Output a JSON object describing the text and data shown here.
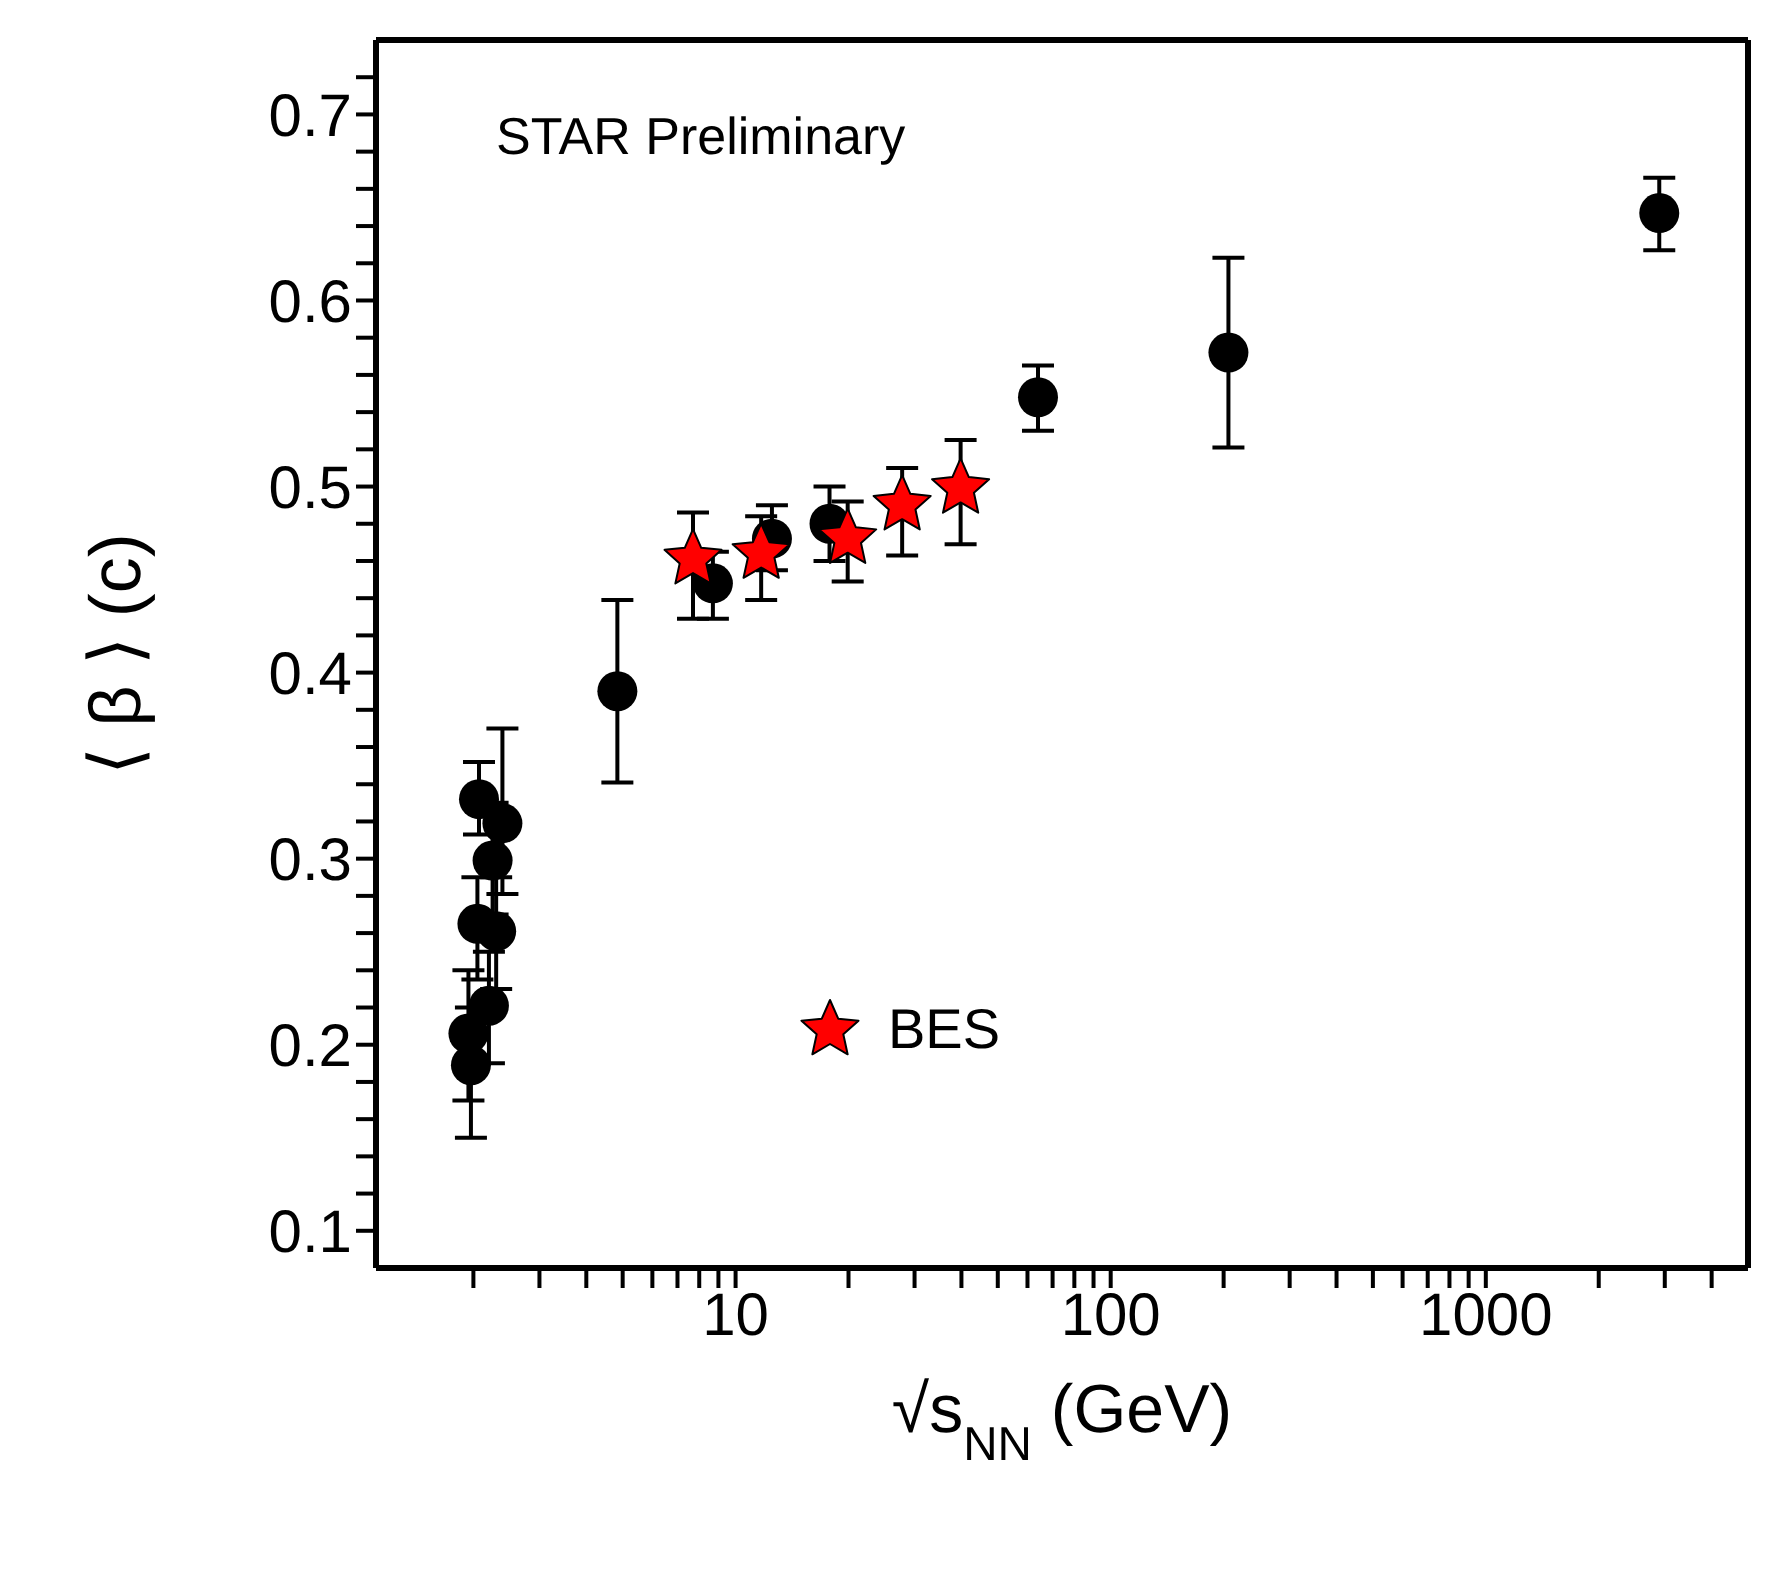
{
  "chart_data": {
    "type": "scatter",
    "xlabel": "√s$_{NN}$ (GeV)",
    "ylabel": "⟨ β ⟩ (c)",
    "annotations": [
      "STAR Preliminary"
    ],
    "log": "x",
    "xlim": [
      1.1,
      5000
    ],
    "xticks": [
      {
        "value": 2,
        "label": null
      },
      {
        "value": 3,
        "label": null
      },
      {
        "value": 4,
        "label": null
      },
      {
        "value": 5,
        "label": null
      },
      {
        "value": 6,
        "label": null
      },
      {
        "value": 7,
        "label": null
      },
      {
        "value": 8,
        "label": null
      },
      {
        "value": 9,
        "label": null
      },
      10,
      {
        "value": 20,
        "label": null
      },
      {
        "value": 30,
        "label": null
      },
      {
        "value": 40,
        "label": null
      },
      {
        "value": 50,
        "label": null
      },
      {
        "value": 60,
        "label": null
      },
      {
        "value": 70,
        "label": null
      },
      {
        "value": 80,
        "label": null
      },
      {
        "value": 90,
        "label": null
      },
      100,
      {
        "value": 200,
        "label": null
      },
      {
        "value": 300,
        "label": null
      },
      {
        "value": 400,
        "label": null
      },
      {
        "value": 500,
        "label": null
      },
      {
        "value": 600,
        "label": null
      },
      {
        "value": 700,
        "label": null
      },
      {
        "value": 800,
        "label": null
      },
      {
        "value": 900,
        "label": null
      },
      1000,
      {
        "value": 2000,
        "label": null
      },
      {
        "value": 3000,
        "label": null
      },
      {
        "value": 4000,
        "label": null
      }
    ],
    "ylim": [
      0.08,
      0.74
    ],
    "yticks": [
      0.1,
      {
        "value": 0.12,
        "label": null
      },
      {
        "value": 0.14,
        "label": null
      },
      {
        "value": 0.16,
        "label": null
      },
      {
        "value": 0.18,
        "label": null
      },
      0.2,
      {
        "value": 0.22,
        "label": null
      },
      {
        "value": 0.24,
        "label": null
      },
      {
        "value": 0.26,
        "label": null
      },
      {
        "value": 0.28,
        "label": null
      },
      0.3,
      {
        "value": 0.32,
        "label": null
      },
      {
        "value": 0.34,
        "label": null
      },
      {
        "value": 0.36,
        "label": null
      },
      {
        "value": 0.38,
        "label": null
      },
      0.4,
      {
        "value": 0.42,
        "label": null
      },
      {
        "value": 0.44,
        "label": null
      },
      {
        "value": 0.46,
        "label": null
      },
      {
        "value": 0.48,
        "label": null
      },
      0.5,
      {
        "value": 0.52,
        "label": null
      },
      {
        "value": 0.54,
        "label": null
      },
      {
        "value": 0.56,
        "label": null
      },
      {
        "value": 0.58,
        "label": null
      },
      0.6,
      {
        "value": 0.62,
        "label": null
      },
      {
        "value": 0.64,
        "label": null
      },
      {
        "value": 0.66,
        "label": null
      },
      {
        "value": 0.68,
        "label": null
      },
      0.7,
      {
        "value": 0.72,
        "label": null
      }
    ],
    "legend": "bottom",
    "series": [
      {
        "color": "#000000",
        "marker": "circle",
        "x": [
          2.07,
          2.39,
          2.25,
          2.05,
          2.3,
          2.2,
          1.94,
          1.97,
          4.84,
          8.7,
          12.5,
          17.8,
          64,
          206,
          2900
        ],
        "values": [
          0.332,
          0.319,
          0.299,
          0.265,
          0.261,
          0.221,
          0.206,
          0.189,
          0.39,
          0.448,
          0.472,
          0.48,
          0.548,
          0.572,
          0.647
        ],
        "errors": [
          [
            0.313,
            0.352
          ],
          [
            0.281,
            0.37
          ],
          [
            0.27,
            0.33
          ],
          [
            0.235,
            0.29
          ],
          [
            0.23,
            0.29
          ],
          [
            0.19,
            0.25
          ],
          [
            0.17,
            0.24
          ],
          [
            0.15,
            0.22
          ],
          [
            0.341,
            0.439
          ],
          [
            0.429,
            0.465
          ],
          [
            0.455,
            0.49
          ],
          [
            0.46,
            0.5
          ],
          [
            0.53,
            0.565
          ],
          [
            0.521,
            0.623
          ],
          [
            0.627,
            0.666
          ]
        ]
      },
      {
        "name": "BES",
        "color": "#ff0000",
        "marker": "star",
        "x": [
          7.7,
          11.7,
          19.9,
          27.8,
          39.8
        ],
        "values": [
          0.461,
          0.464,
          0.472,
          0.49,
          0.499
        ],
        "errors": [
          [
            0.429,
            0.486
          ],
          [
            0.439,
            0.484
          ],
          [
            0.449,
            0.492
          ],
          [
            0.463,
            0.51
          ],
          [
            0.469,
            0.525
          ]
        ]
      }
    ]
  }
}
